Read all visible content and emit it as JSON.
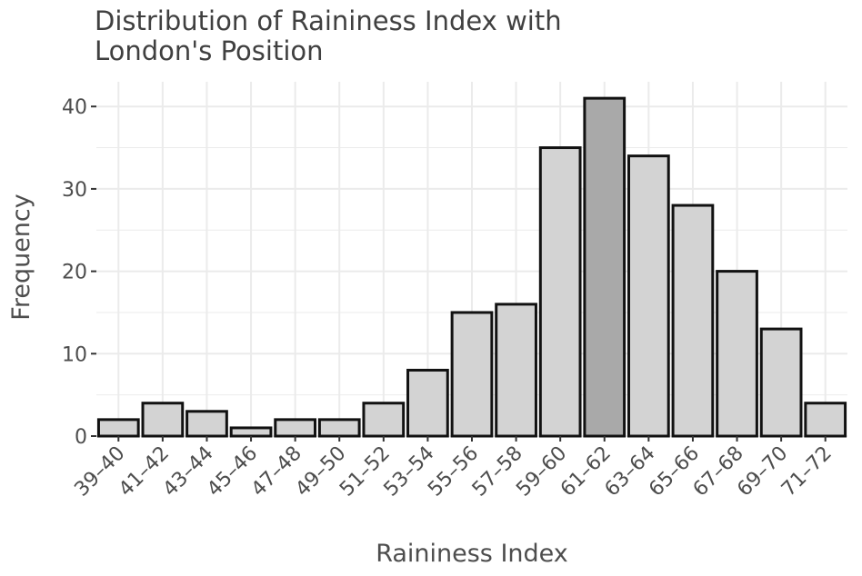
{
  "chart_data": {
    "type": "bar",
    "title": "Distribution of Raininess Index with London's Position",
    "title_lines": [
      "Distribution of Raininess Index with",
      "London's Position"
    ],
    "xlabel": "Raininess Index",
    "ylabel": "Frequency",
    "categories": [
      "39–40",
      "41–42",
      "43–44",
      "45–46",
      "47–48",
      "49–50",
      "51–52",
      "53–54",
      "55–56",
      "57–58",
      "59–60",
      "61–62",
      "63–64",
      "65–66",
      "67–68",
      "69–70",
      "71–72"
    ],
    "values": [
      2,
      4,
      3,
      1,
      2,
      2,
      4,
      8,
      15,
      16,
      35,
      41,
      34,
      28,
      20,
      13,
      4
    ],
    "highlight_category": "61–62",
    "ylim": [
      0,
      43
    ],
    "yticks": [
      0,
      10,
      20,
      30,
      40
    ],
    "grid": true,
    "colors": {
      "bar_fill": "#d3d3d3",
      "highlight_fill": "#a9a9a9",
      "bar_stroke": "#111111",
      "grid": "#ebebeb",
      "text": "#4d4d4d"
    }
  }
}
